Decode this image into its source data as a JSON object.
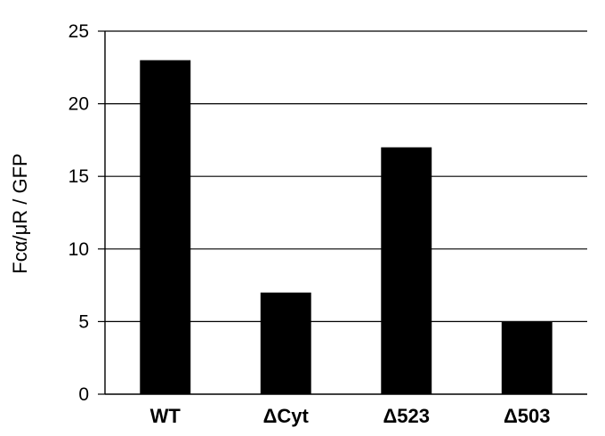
{
  "chart_data": {
    "type": "bar",
    "title": "",
    "xlabel": "",
    "ylabel": "Fcα/μR / GFP",
    "categories": [
      "WT",
      "ΔCyt",
      "Δ523",
      "Δ503"
    ],
    "values": [
      23,
      7,
      17,
      5
    ],
    "ylim": [
      0,
      25
    ],
    "yticks": [
      0,
      5,
      10,
      15,
      20,
      25
    ],
    "grid": true,
    "legend": "none",
    "colors": {
      "bar": "#000000",
      "grid": "#000000",
      "axis": "#000000"
    }
  }
}
